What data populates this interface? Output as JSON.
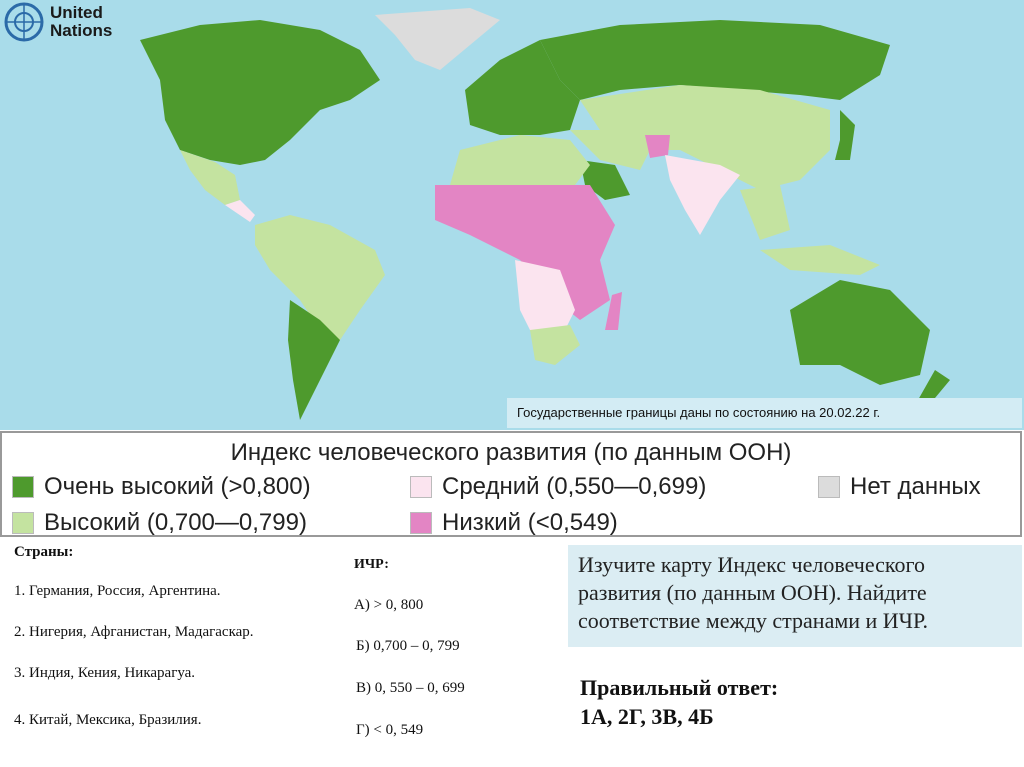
{
  "logo": {
    "line1": "United",
    "line2": "Nations"
  },
  "map": {
    "caption": "Государственные границы даны по состоянию на 20.02.22 г.",
    "colors": {
      "ocean": "#a9dcea",
      "very_high": "#4e9a2d",
      "high": "#c4e3a0",
      "medium": "#fbe4ef",
      "low": "#e385c4",
      "no_data": "#dcdcdc"
    }
  },
  "legend": {
    "title": "Индекс человеческого развития (по данным ООН)",
    "items": [
      {
        "label": "Очень высокий (>0,800)",
        "color": "#4e9a2d"
      },
      {
        "label": "Высокий (0,700—0,799)",
        "color": "#c4e3a0"
      },
      {
        "label": "Средний (0,550—0,699)",
        "color": "#fbe4ef"
      },
      {
        "label": "Низкий (<0,549)",
        "color": "#e385c4"
      },
      {
        "label": "Нет данных",
        "color": "#dcdcdc"
      }
    ]
  },
  "countries": {
    "heading": "Страны:",
    "items": [
      "1. Германия, Россия, Аргентина.",
      "2. Нигерия, Афганистан, Мадагаскар.",
      "3. Индия, Кения, Никарагуа.",
      "4. Китай, Мексика, Бразилия."
    ]
  },
  "hdi": {
    "heading": "ИЧР:",
    "items": [
      "А) > 0, 800",
      "Б) 0,700 – 0, 799",
      "В) 0, 550 – 0, 699",
      "Г) < 0, 549"
    ]
  },
  "task": "Изучите карту Индекс человеческого развития (по данным ООН). Найдите соответствие между странами и ИЧР.",
  "answer": {
    "label": "Правильный ответ:",
    "value": "1А, 2Г, 3В, 4Б"
  }
}
